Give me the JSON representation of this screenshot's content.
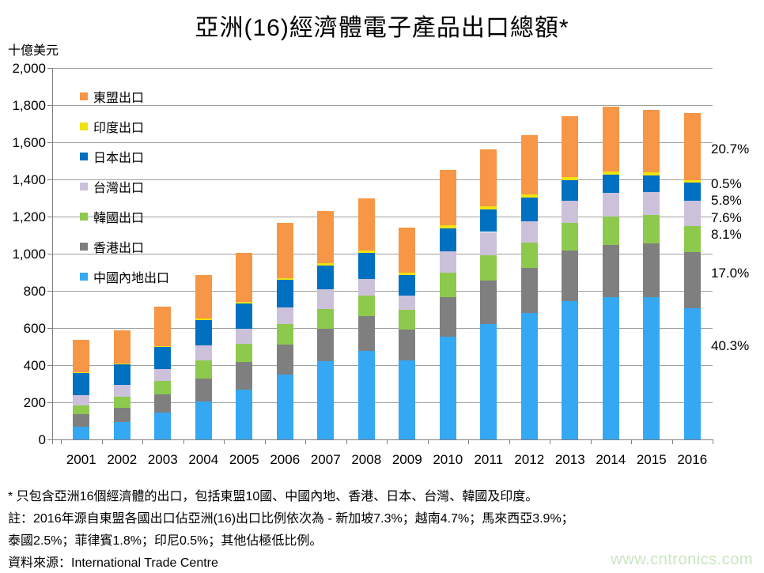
{
  "title": "亞洲(16)經濟體電子產品出口總額*",
  "y_axis_unit": "十億美元",
  "chart_data": {
    "type": "bar",
    "stacked": true,
    "title": "亞洲(16)經濟體電子產品出口總額*",
    "ylabel": "十億美元",
    "ylim": [
      0,
      2000
    ],
    "y_tick_step": 200,
    "y_tick_labels": [
      "0",
      "200",
      "400",
      "600",
      "800",
      "1,000",
      "1,200",
      "1,400",
      "1,600",
      "1,800",
      "2,000"
    ],
    "grid": true,
    "legend_position": "inside-top-left",
    "categories": [
      "2001",
      "2002",
      "2003",
      "2004",
      "2005",
      "2006",
      "2007",
      "2008",
      "2009",
      "2010",
      "2011",
      "2012",
      "2013",
      "2014",
      "2015",
      "2016"
    ],
    "series": [
      {
        "name": "中國內地出口",
        "color": "#35a8f4",
        "values": [
          69,
          93,
          143,
          203,
          269,
          351,
          421,
          476,
          426,
          554,
          621,
          679,
          743,
          765,
          766,
          708
        ]
      },
      {
        "name": "香港出口",
        "color": "#7f7f7f",
        "values": [
          67,
          79,
          100,
          123,
          146,
          160,
          174,
          186,
          164,
          213,
          236,
          246,
          274,
          282,
          291,
          299
        ]
      },
      {
        "name": "韓國出口",
        "color": "#8dc94d",
        "values": [
          45,
          57,
          71,
          99,
          100,
          112,
          107,
          113,
          106,
          130,
          136,
          133,
          151,
          153,
          153,
          142
        ]
      },
      {
        "name": "台灣出口",
        "color": "#ccc1da",
        "values": [
          58,
          64,
          64,
          80,
          82,
          86,
          105,
          90,
          79,
          117,
          124,
          117,
          117,
          129,
          121,
          134
        ]
      },
      {
        "name": "日本出口",
        "color": "#0070c0",
        "values": [
          119,
          112,
          122,
          139,
          136,
          150,
          128,
          140,
          111,
          124,
          123,
          126,
          111,
          97,
          90,
          102
        ]
      },
      {
        "name": "印度出口",
        "color": "#f0e20f",
        "values": [
          3,
          5,
          4,
          5,
          9,
          8,
          13,
          14,
          13,
          14,
          17,
          17,
          17,
          17,
          17,
          9
        ]
      },
      {
        "name": "東盟出口",
        "color": "#f79646",
        "values": [
          175,
          176,
          211,
          235,
          261,
          298,
          283,
          278,
          243,
          301,
          303,
          319,
          329,
          350,
          337,
          364
        ]
      }
    ],
    "right_percent_labels": [
      {
        "label": "20.7%",
        "series": "東盟出口"
      },
      {
        "label": "0.5%",
        "series": "印度出口"
      },
      {
        "label": "5.8%",
        "series": "日本出口"
      },
      {
        "label": "7.6%",
        "series": "台灣出口"
      },
      {
        "label": "8.1%",
        "series": "韓國出口"
      },
      {
        "label": "17.0%",
        "series": "香港出口"
      },
      {
        "label": "40.3%",
        "series": "中國內地出口"
      }
    ]
  },
  "notes": {
    "line1": "* 只包含亞洲16個經濟體的出口，包括東盟10國、中國內地、香港、日本、台灣、韓國及印度。",
    "line2": "註：2016年源自東盟各國出口佔亞洲(16)出口比例依次為 - 新加坡7.3%；越南4.7%；馬來西亞3.9%；",
    "line3": "泰國2.5%；菲律賓1.8%；印尼0.5%；其他佔極低比例。",
    "source": "資料來源：International Trade Centre"
  },
  "watermark": "www.cntronics.com",
  "colors": {
    "gridline": "#a0a0a0",
    "axis": "#7f7f7f",
    "watermark": "#c9e6c0"
  }
}
